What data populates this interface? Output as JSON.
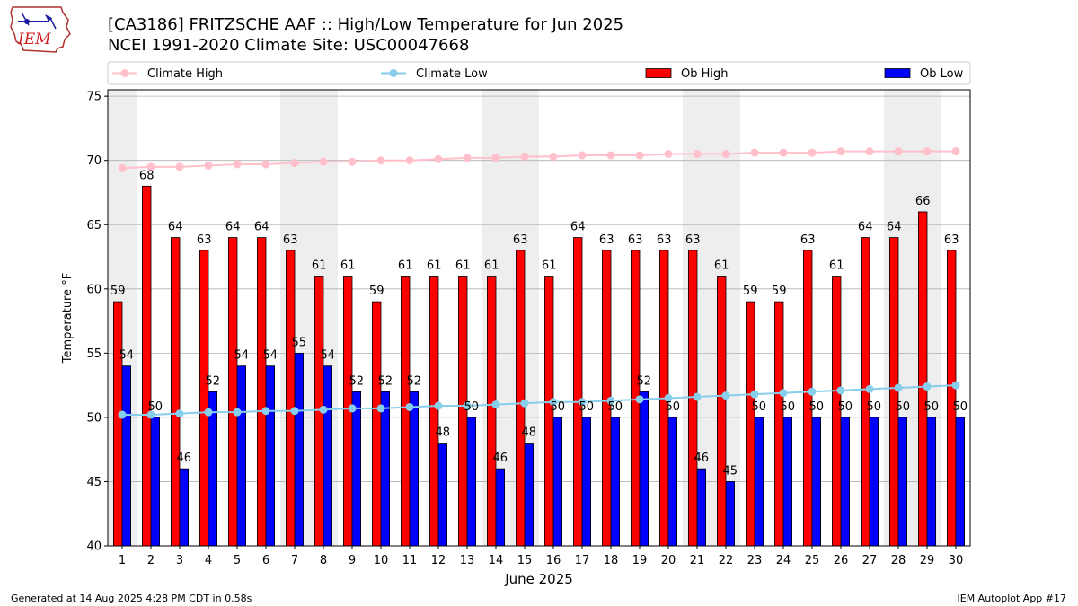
{
  "header": {
    "title_line1": "[CA3186] FRITZSCHE AAF :: High/Low Temperature for Jun 2025",
    "title_line2": "NCEI 1991-2020 Climate Site: USC00047668"
  },
  "logo": {
    "text": "IEM",
    "icon": "iowa-state-outline-logo"
  },
  "footer": {
    "generated": "Generated at 14 Aug 2025 4:28 PM CDT in 0.58s",
    "app": "IEM Autoplot App #17"
  },
  "colors": {
    "ob_high": "#ff0000",
    "ob_low": "#0000ff",
    "climate_high": "#ffc0cb",
    "climate_low": "#87ceeb",
    "weekend_band": "#eeeeee",
    "grid": "#b0b0b0"
  },
  "chart_data": {
    "type": "bar",
    "xlabel": "June 2025",
    "ylabel": "Temperature °F",
    "ylim": [
      40,
      75.5
    ],
    "yticks": [
      40,
      45,
      50,
      55,
      60,
      65,
      70,
      75
    ],
    "grid": "horizontal",
    "legend_position": "top, above plot",
    "shaded_weekend_days": [
      1,
      7,
      8,
      14,
      15,
      21,
      22,
      28,
      29
    ],
    "categories": [
      "1",
      "2",
      "3",
      "4",
      "5",
      "6",
      "7",
      "8",
      "9",
      "10",
      "11",
      "12",
      "13",
      "14",
      "15",
      "16",
      "17",
      "18",
      "19",
      "20",
      "21",
      "22",
      "23",
      "24",
      "25",
      "26",
      "27",
      "28",
      "29",
      "30"
    ],
    "series": [
      {
        "name": "Climate High",
        "kind": "line",
        "color": "#ffc0cb",
        "values": [
          69.4,
          69.5,
          69.5,
          69.6,
          69.7,
          69.7,
          69.8,
          69.9,
          69.9,
          70.0,
          70.0,
          70.1,
          70.2,
          70.2,
          70.3,
          70.3,
          70.4,
          70.4,
          70.4,
          70.5,
          70.5,
          70.5,
          70.6,
          70.6,
          70.6,
          70.7,
          70.7,
          70.7,
          70.7,
          70.7
        ]
      },
      {
        "name": "Climate Low",
        "kind": "line",
        "color": "#87ceeb",
        "values": [
          50.2,
          50.2,
          50.3,
          50.4,
          50.4,
          50.5,
          50.5,
          50.6,
          50.7,
          50.7,
          50.8,
          50.9,
          50.9,
          51.0,
          51.1,
          51.2,
          51.2,
          51.3,
          51.4,
          51.5,
          51.6,
          51.7,
          51.8,
          51.9,
          52.0,
          52.1,
          52.2,
          52.3,
          52.4,
          52.5
        ]
      },
      {
        "name": "Ob High",
        "kind": "bar",
        "color": "#ff0000",
        "values": [
          59,
          68,
          64,
          63,
          64,
          64,
          63,
          61,
          61,
          59,
          61,
          61,
          61,
          61,
          63,
          61,
          64,
          63,
          63,
          63,
          63,
          61,
          59,
          59,
          63,
          61,
          64,
          64,
          66,
          63
        ]
      },
      {
        "name": "Ob Low",
        "kind": "bar",
        "color": "#0000ff",
        "values": [
          54,
          50,
          46,
          52,
          54,
          54,
          55,
          54,
          52,
          52,
          52,
          48,
          50,
          46,
          48,
          50,
          50,
          50,
          52,
          50,
          46,
          45,
          50,
          50,
          50,
          50,
          50,
          50,
          50,
          50
        ]
      }
    ]
  }
}
